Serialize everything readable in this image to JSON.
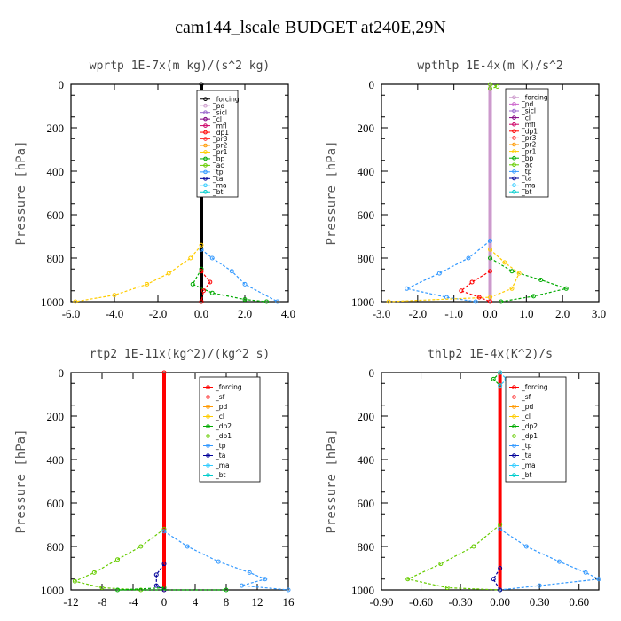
{
  "figure": {
    "title": "cam144_lscale  BUDGET at240E,29N"
  },
  "chart_data": [
    {
      "type": "line",
      "title": "wprtp  1E-7x(m kg)/(s^2 kg)",
      "ylabel": "Pressure [hPa]",
      "xlim": [
        -6.0,
        4.0
      ],
      "ylim": [
        1000,
        0
      ],
      "xticks": [
        "-6.0",
        "-4.0",
        "-2.0",
        "0.0",
        "2.0",
        "4.0"
      ],
      "xtick_values": [
        -6,
        -4,
        -2,
        0,
        2,
        4
      ],
      "yticks": [
        "0",
        "200",
        "400",
        "600",
        "800",
        "1000"
      ],
      "ytick_values": [
        0,
        200,
        400,
        600,
        800,
        1000
      ],
      "legend": [
        "_forcing",
        "_pd",
        "_sicl",
        "_cl",
        "_mfl",
        "_dp1",
        "_pr3",
        "_pr2",
        "_pr1",
        "_bp",
        "_ac",
        "_tp",
        "_ta",
        "_ma",
        "_bt"
      ],
      "legend_colors": [
        "#000000",
        "#cc99cc",
        "#9966cc",
        "#800080",
        "#cc0066",
        "#ff0000",
        "#ff3333",
        "#ff9900",
        "#ffcc00",
        "#00aa00",
        "#66cc00",
        "#3399ff",
        "#000099",
        "#33ccff",
        "#00cccc"
      ],
      "series": [
        {
          "name": "_forcing",
          "color": "#000000",
          "points": [
            [
              0,
              0
            ],
            [
              0,
              1000
            ]
          ]
        },
        {
          "name": "_pr1",
          "color": "#ffcc00",
          "points": [
            [
              0,
              740
            ],
            [
              -0.5,
              800
            ],
            [
              -1.5,
              870
            ],
            [
              -2.5,
              920
            ],
            [
              -4,
              970
            ],
            [
              -5.8,
              1000
            ]
          ]
        },
        {
          "name": "_bp",
          "color": "#00aa00",
          "points": [
            [
              0,
              850
            ],
            [
              -0.4,
              920
            ],
            [
              0.5,
              960
            ],
            [
              2.0,
              990
            ],
            [
              3.0,
              1000
            ]
          ]
        },
        {
          "name": "_dp1",
          "color": "#ff0000",
          "points": [
            [
              0,
              860
            ],
            [
              0.4,
              910
            ],
            [
              0.1,
              950
            ],
            [
              0,
              1000
            ]
          ]
        },
        {
          "name": "_tp",
          "color": "#3399ff",
          "points": [
            [
              0,
              760
            ],
            [
              0.5,
              800
            ],
            [
              1.4,
              860
            ],
            [
              2.0,
              920
            ],
            [
              3.5,
              1000
            ]
          ]
        }
      ]
    },
    {
      "type": "line",
      "title": "wpthlp  1E-4x(m K)/s^2",
      "ylabel": "Pressure [hPa]",
      "xlim": [
        -3.0,
        3.0
      ],
      "ylim": [
        1000,
        0
      ],
      "xticks": [
        "-3.0",
        "-2.0",
        "-1.0",
        "0.0",
        "1.0",
        "2.0",
        "3.0"
      ],
      "xtick_values": [
        -3,
        -2,
        -1,
        0,
        1,
        2,
        3
      ],
      "yticks": [
        "0",
        "200",
        "400",
        "600",
        "800",
        "1000"
      ],
      "ytick_values": [
        0,
        200,
        400,
        600,
        800,
        1000
      ],
      "legend": [
        "_forcing",
        "_pd",
        "_sicl",
        "_cl",
        "_mfl",
        "_dp1",
        "_pr3",
        "_pr2",
        "_pr1",
        "_bp",
        "_ac",
        "_tp",
        "_ta",
        "_ma",
        "_bt"
      ],
      "legend_colors": [
        "#cc99cc",
        "#cc66cc",
        "#9966cc",
        "#800080",
        "#cc0066",
        "#ff0000",
        "#ff3333",
        "#ff9900",
        "#ffcc00",
        "#00aa00",
        "#66cc00",
        "#3399ff",
        "#000099",
        "#33ccff",
        "#00cccc"
      ],
      "series": [
        {
          "name": "_forcing",
          "color": "#cc99cc",
          "points": [
            [
              0,
              0
            ],
            [
              0,
              1000
            ]
          ]
        },
        {
          "name": "_tp",
          "color": "#3399ff",
          "points": [
            [
              0,
              720
            ],
            [
              -0.6,
              800
            ],
            [
              -1.4,
              870
            ],
            [
              -2.3,
              940
            ],
            [
              -1.2,
              980
            ],
            [
              -0.4,
              1000
            ]
          ]
        },
        {
          "name": "_bp",
          "color": "#00aa00",
          "points": [
            [
              0,
              800
            ],
            [
              0.6,
              860
            ],
            [
              1.4,
              900
            ],
            [
              2.1,
              940
            ],
            [
              1.2,
              975
            ],
            [
              0.3,
              1000
            ]
          ]
        },
        {
          "name": "_pr1",
          "color": "#ffcc00",
          "points": [
            [
              0,
              760
            ],
            [
              0.4,
              820
            ],
            [
              0.8,
              870
            ],
            [
              0.6,
              940
            ],
            [
              0,
              980
            ],
            [
              -2.8,
              1000
            ]
          ]
        },
        {
          "name": "_dp1",
          "color": "#ff0000",
          "points": [
            [
              0,
              860
            ],
            [
              -0.5,
              910
            ],
            [
              -0.8,
              950
            ],
            [
              -0.3,
              980
            ],
            [
              0,
              1000
            ]
          ]
        },
        {
          "name": "_ac",
          "color": "#66cc00",
          "points": [
            [
              0,
              0
            ],
            [
              0.2,
              10
            ],
            [
              0,
              20
            ]
          ]
        }
      ]
    },
    {
      "type": "line",
      "title": "rtp2  1E-11x(kg^2)/(kg^2 s)",
      "ylabel": "Pressure [hPa]",
      "xlim": [
        -12,
        16
      ],
      "ylim": [
        1000,
        0
      ],
      "xticks": [
        "-12",
        "-8",
        "-4",
        "0",
        "4",
        "8",
        "12",
        "16"
      ],
      "xtick_values": [
        -12,
        -8,
        -4,
        0,
        4,
        8,
        12,
        16
      ],
      "yticks": [
        "0",
        "200",
        "400",
        "600",
        "800",
        "1000"
      ],
      "ytick_values": [
        0,
        200,
        400,
        600,
        800,
        1000
      ],
      "legend": [
        "_forcing",
        "_sf",
        "_pd",
        "_cl",
        "_dp2",
        "_dp1",
        "_tp",
        "_ta",
        "_ma",
        "_bt"
      ],
      "legend_colors": [
        "#ff0000",
        "#ff3333",
        "#ff9900",
        "#ffcc00",
        "#00aa00",
        "#66cc00",
        "#3399ff",
        "#000099",
        "#33ccff",
        "#00cccc"
      ],
      "series": [
        {
          "name": "_forcing",
          "color": "#ff0000",
          "points": [
            [
              0,
              0
            ],
            [
              0,
              1000
            ]
          ]
        },
        {
          "name": "_dp1",
          "color": "#66cc00",
          "points": [
            [
              0,
              720
            ],
            [
              -3,
              800
            ],
            [
              -6,
              860
            ],
            [
              -9,
              920
            ],
            [
              -11.5,
              960
            ],
            [
              -8,
              990
            ],
            [
              -3,
              1000
            ]
          ]
        },
        {
          "name": "_tp",
          "color": "#3399ff",
          "points": [
            [
              0,
              730
            ],
            [
              3,
              800
            ],
            [
              7,
              870
            ],
            [
              11,
              920
            ],
            [
              13,
              950
            ],
            [
              10,
              980
            ],
            [
              16,
              1000
            ]
          ]
        },
        {
          "name": "_ta",
          "color": "#000099",
          "points": [
            [
              0,
              880
            ],
            [
              -1,
              930
            ],
            [
              -1,
              980
            ],
            [
              0,
              1000
            ]
          ]
        },
        {
          "name": "_dp2",
          "color": "#00aa00",
          "points": [
            [
              0,
              990
            ],
            [
              -6,
              1000
            ],
            [
              8,
              1000
            ]
          ]
        }
      ]
    },
    {
      "type": "line",
      "title": "thlp2  1E-4x(K^2)/s",
      "ylabel": "Pressure [hPa]",
      "xlim": [
        -0.9,
        0.75
      ],
      "ylim": [
        1000,
        0
      ],
      "xticks": [
        "-0.90",
        "-0.60",
        "-0.30",
        "0.00",
        "0.30",
        "0.60"
      ],
      "xtick_values": [
        -0.9,
        -0.6,
        -0.3,
        0,
        0.3,
        0.6
      ],
      "yticks": [
        "0",
        "200",
        "400",
        "600",
        "800",
        "1000"
      ],
      "ytick_values": [
        0,
        200,
        400,
        600,
        800,
        1000
      ],
      "legend": [
        "_forcing",
        "_sf",
        "_pd",
        "_cl",
        "_dp2",
        "_dp1",
        "_tp",
        "_ta",
        "_ma",
        "_bt"
      ],
      "legend_colors": [
        "#ff0000",
        "#ff3333",
        "#ff9900",
        "#ffcc00",
        "#00aa00",
        "#66cc00",
        "#3399ff",
        "#000099",
        "#33ccff",
        "#00cccc"
      ],
      "series": [
        {
          "name": "_forcing",
          "color": "#ff0000",
          "points": [
            [
              0,
              0
            ],
            [
              0,
              1000
            ]
          ]
        },
        {
          "name": "_dp1",
          "color": "#66cc00",
          "points": [
            [
              0,
              700
            ],
            [
              -0.2,
              800
            ],
            [
              -0.45,
              880
            ],
            [
              -0.7,
              950
            ],
            [
              -0.4,
              990
            ],
            [
              0,
              1000
            ]
          ]
        },
        {
          "name": "_tp",
          "color": "#3399ff",
          "points": [
            [
              0,
              720
            ],
            [
              0.2,
              800
            ],
            [
              0.45,
              870
            ],
            [
              0.65,
              920
            ],
            [
              0.75,
              950
            ],
            [
              0.3,
              980
            ],
            [
              0,
              1000
            ]
          ]
        },
        {
          "name": "_ta",
          "color": "#000099",
          "points": [
            [
              0,
              900
            ],
            [
              -0.05,
              950
            ],
            [
              0,
              1000
            ]
          ]
        },
        {
          "name": "_dp2",
          "color": "#00aa00",
          "points": [
            [
              0,
              0
            ],
            [
              -0.05,
              30
            ],
            [
              0,
              60
            ]
          ]
        },
        {
          "name": "_ma",
          "color": "#33ccff",
          "points": [
            [
              0,
              0
            ],
            [
              0.05,
              30
            ],
            [
              0,
              60
            ]
          ]
        }
      ]
    }
  ]
}
